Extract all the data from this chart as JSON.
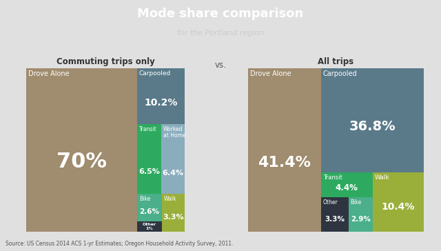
{
  "title": "Mode share comparison",
  "subtitle": "for the Portland region",
  "source": "Source: US Census 2014 ACS 1-yr Estimates; Oregon Household Activity Survey, 2011.",
  "title_bg_color": "#3a3f47",
  "chart_bg_color": "#e0e0e0",
  "vs_label": "vs.",
  "left_title": "Commuting trips only",
  "right_title": "All trips",
  "commute": {
    "drove_alone": {
      "label": "Drove Alone",
      "pct": "70%",
      "value": 70.0,
      "color": "#a08c6e"
    },
    "carpooled": {
      "label": "Carpooled",
      "pct": "10.2%",
      "value": 10.2,
      "color": "#5a7a8a"
    },
    "transit": {
      "label": "Transit",
      "pct": "6.5%",
      "value": 6.5,
      "color": "#2daa5f"
    },
    "worked_home": {
      "label": "Worked\nat Home",
      "pct": "6.4%",
      "value": 6.4,
      "color": "#8aadbe"
    },
    "bike": {
      "label": "Bike",
      "pct": "2.6%",
      "value": 2.6,
      "color": "#4aaf8a"
    },
    "walk": {
      "label": "Walk",
      "pct": "3.3%",
      "value": 3.3,
      "color": "#9aaf3a"
    },
    "other": {
      "label": "Other",
      "pct": "1%",
      "value": 1.0,
      "color": "#2e3540"
    }
  },
  "alltrips": {
    "drove_alone": {
      "label": "Drove Alone",
      "pct": "41.4%",
      "value": 41.4,
      "color": "#a08c6e"
    },
    "carpooled": {
      "label": "Carpooled",
      "pct": "36.8%",
      "value": 36.8,
      "color": "#5a7a8a"
    },
    "transit": {
      "label": "Transit",
      "pct": "4.4%",
      "value": 4.4,
      "color": "#2daa5f"
    },
    "walk": {
      "label": "Walk",
      "pct": "10.4%",
      "value": 10.4,
      "color": "#9aaf3a"
    },
    "other": {
      "label": "Other",
      "pct": "3.3%",
      "value": 3.3,
      "color": "#2e3540"
    },
    "bike": {
      "label": "Bike",
      "pct": "2.9%",
      "value": 2.9,
      "color": "#4aaf8a"
    }
  }
}
